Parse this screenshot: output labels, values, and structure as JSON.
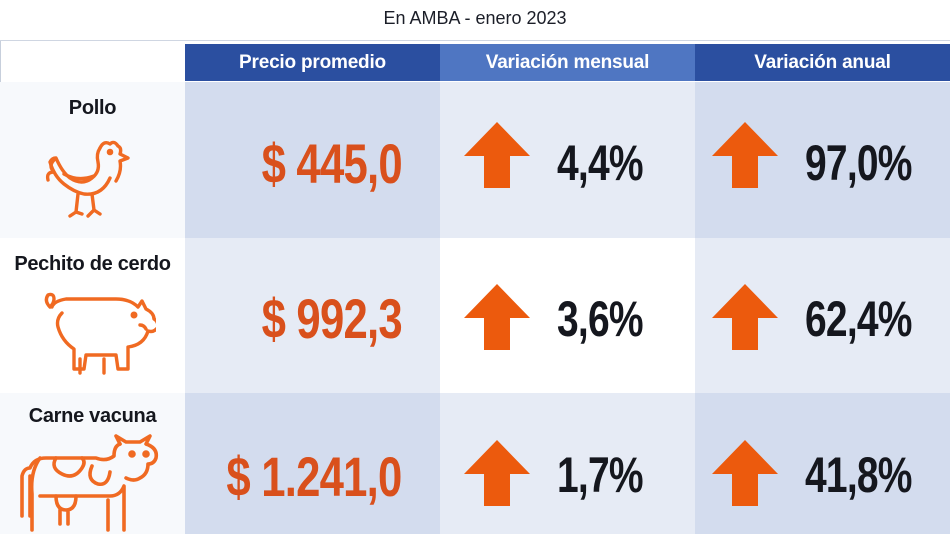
{
  "subtitle": "En AMBA - enero 2023",
  "headers": {
    "precio": "Precio promedio",
    "mensual": "Variación mensual",
    "anual": "Variación anual"
  },
  "rows": [
    {
      "label": "Pollo",
      "icon": "chicken-icon",
      "precio": "$ 445,0",
      "mensual": "4,4%",
      "anual": "97,0%"
    },
    {
      "label": "Pechito de cerdo",
      "icon": "pig-icon",
      "precio": "$ 992,3",
      "mensual": "3,6%",
      "anual": "62,4%"
    },
    {
      "label": "Carne vacuna",
      "icon": "cow-icon",
      "precio": "$ 1.241,0",
      "mensual": "1,7%",
      "anual": "41,8%"
    }
  ],
  "colors": {
    "header_dark": "#2b4fa0",
    "header_light": "#4f76c2",
    "price": "#d9501c",
    "arrow": "#ec5a0d",
    "icon": "#f06a22"
  }
}
